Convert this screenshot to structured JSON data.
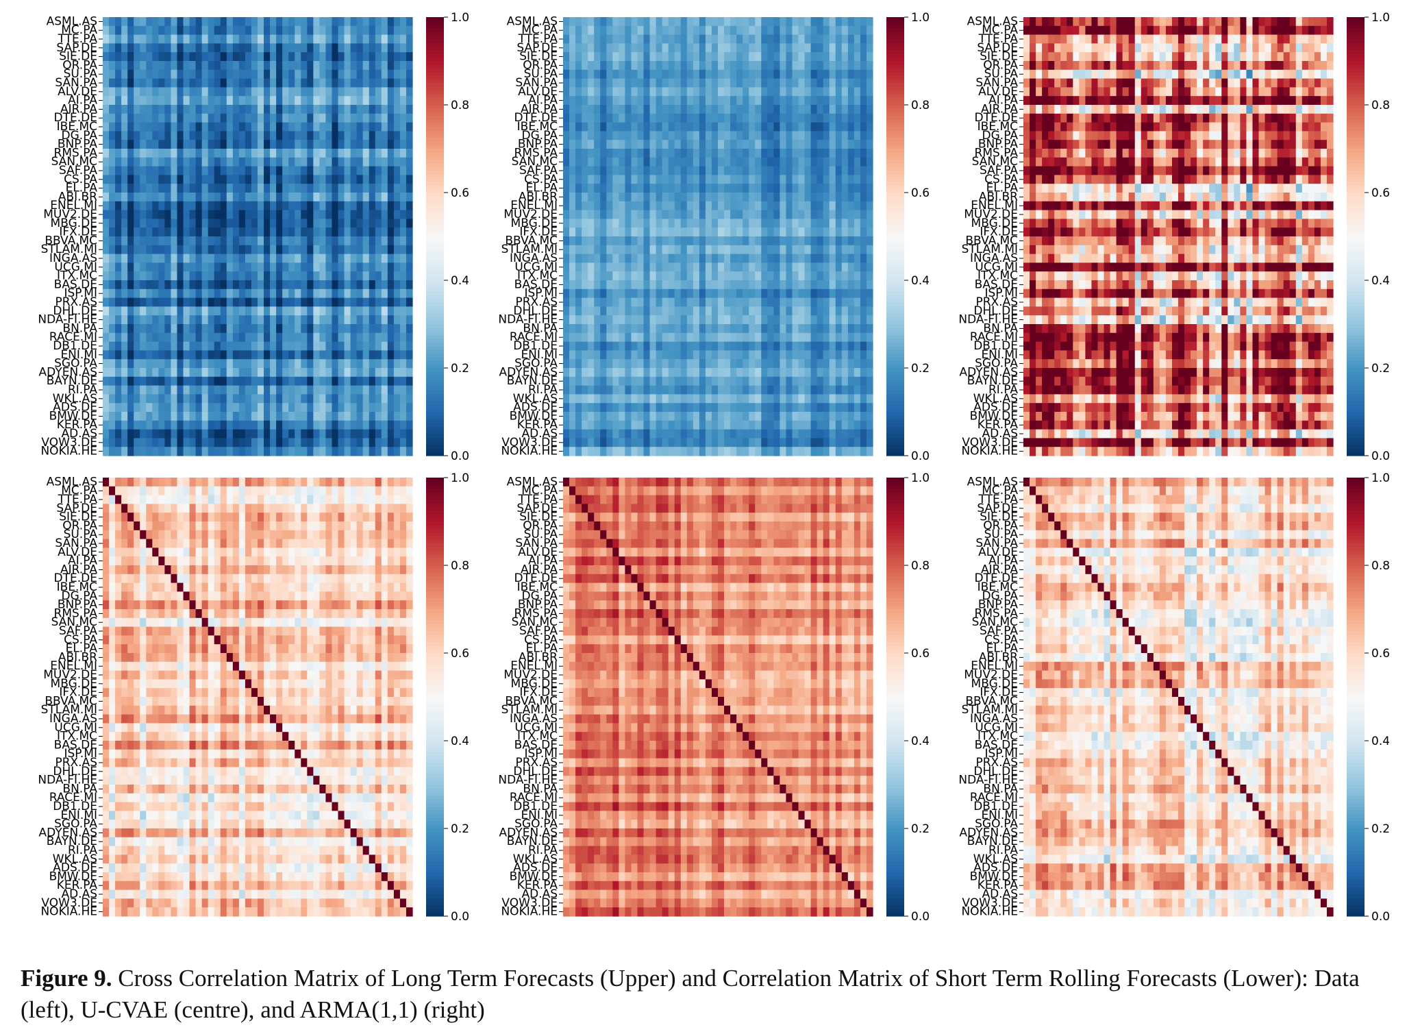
{
  "figure": {
    "caption_label": "Figure 9.",
    "caption_text": " Cross Correlation Matrix of Long Term Forecasts (Upper) and Correlation Matrix of Short Term Rolling Forecasts (Lower): Data (left), U-CVAE (centre), and ARMA(1,1) (right)"
  },
  "colormap": {
    "name": "RdBu_r",
    "stops": [
      "#053061",
      "#2166ac",
      "#4393c3",
      "#92c5de",
      "#d1e5f0",
      "#f7f7f7",
      "#fddbc7",
      "#f4a582",
      "#d6604d",
      "#b2182b",
      "#67001f"
    ]
  },
  "chart_data": [
    {
      "type": "heatmap",
      "panel": "long-term-data",
      "row_labels": [
        "ASML.AS",
        "MC.PA",
        "TTE.PA",
        "SAP.DE",
        "SIE.DE",
        "OR.PA",
        "SU.PA",
        "SAN.PA",
        "ALV.DE",
        "AI.PA",
        "AIR.PA",
        "DTE.DE",
        "IBE.MC",
        "DG.PA",
        "BNP.PA",
        "RMS.PA",
        "SAN.MC",
        "SAF.PA",
        "CS.PA",
        "EL.PA",
        "ABI.BR",
        "ENEL.MI",
        "MUV2.DE",
        "MBG.DE",
        "IFX.DE",
        "BBVA.MC",
        "STLAM.MI",
        "INGA.AS",
        "UCG.MI",
        "ITX.MC",
        "BAS.DE",
        "ISP.MI",
        "PRX.AS",
        "DHL.DE",
        "NDA-FI.HE",
        "BN.PA",
        "RACE.MI",
        "DB1.DE",
        "ENI.MI",
        "SGO.PA",
        "ADYEN.AS",
        "BAYN.DE",
        "RI.PA",
        "WKL.AS",
        "ADS.DE",
        "BMW.DE",
        "KER.PA",
        "AD.AS",
        "VOW3.DE",
        "NOKIA.HE"
      ],
      "colorbar_ticks": [
        "0.0",
        "0.2",
        "0.4",
        "0.6",
        "0.8",
        "1.0"
      ],
      "vmin": 0.0,
      "vmax": 1.0,
      "value_summary": {
        "mean": 0.15,
        "spread": 0.12,
        "diagonal": null
      }
    },
    {
      "type": "heatmap",
      "panel": "long-term-u-cvae",
      "row_labels": [
        "ASML.AS",
        "MC.PA",
        "TTE.PA",
        "SAP.DE",
        "SIE.DE",
        "OR.PA",
        "SU.PA",
        "SAN.PA",
        "ALV.DE",
        "AI.PA",
        "AIR.PA",
        "DTE.DE",
        "IBE.MC",
        "DG.PA",
        "BNP.PA",
        "RMS.PA",
        "SAN.MC",
        "SAF.PA",
        "CS.PA",
        "EL.PA",
        "ABI.BR",
        "ENEL.MI",
        "MUV2.DE",
        "MBG.DE",
        "IFX.DE",
        "BBVA.MC",
        "STLAM.MI",
        "INGA.AS",
        "UCG.MI",
        "ITX.MC",
        "BAS.DE",
        "ISP.MI",
        "PRX.AS",
        "DHL.DE",
        "NDA-FI.HE",
        "BN.PA",
        "RACE.MI",
        "DB1.DE",
        "ENI.MI",
        "SGO.PA",
        "ADYEN.AS",
        "BAYN.DE",
        "RI.PA",
        "WKL.AS",
        "ADS.DE",
        "BMW.DE",
        "KER.PA",
        "AD.AS",
        "VOW3.DE",
        "NOKIA.HE"
      ],
      "colorbar_ticks": [
        "0.0",
        "0.2",
        "0.4",
        "0.6",
        "0.8",
        "1.0"
      ],
      "vmin": 0.0,
      "vmax": 1.0,
      "value_summary": {
        "mean": 0.2,
        "spread": 0.08,
        "diagonal": null
      }
    },
    {
      "type": "heatmap",
      "panel": "long-term-arma",
      "row_labels": [
        "ASML.AS",
        "MC.PA",
        "TTE.PA",
        "SAP.DE",
        "SIE.DE",
        "OR.PA",
        "SU.PA",
        "SAN.PA",
        "ALV.DE",
        "AI.PA",
        "AIR.PA",
        "DTE.DE",
        "IBE.MC",
        "DG.PA",
        "BNP.PA",
        "RMS.PA",
        "SAN.MC",
        "SAF.PA",
        "CS.PA",
        "EL.PA",
        "ABI.BR",
        "ENEL.MI",
        "MUV2.DE",
        "MBG.DE",
        "IFX.DE",
        "BBVA.MC",
        "STLAM.MI",
        "INGA.AS",
        "UCG.MI",
        "ITX.MC",
        "BAS.DE",
        "ISP.MI",
        "PRX.AS",
        "DHL.DE",
        "NDA-FI.HE",
        "BN.PA",
        "RACE.MI",
        "DB1.DE",
        "ENI.MI",
        "SGO.PA",
        "ADYEN.AS",
        "BAYN.DE",
        "RI.PA",
        "WKL.AS",
        "ADS.DE",
        "BMW.DE",
        "KER.PA",
        "AD.AS",
        "VOW3.DE",
        "NOKIA.HE"
      ],
      "colorbar_ticks": [
        "0.0",
        "0.2",
        "0.4",
        "0.6",
        "0.8",
        "1.0"
      ],
      "vmin": 0.0,
      "vmax": 1.0,
      "value_summary": {
        "mean": 0.75,
        "spread": 0.3,
        "diagonal": null
      }
    },
    {
      "type": "heatmap",
      "panel": "short-term-data",
      "row_labels": [
        "ASML.AS",
        "MC.PA",
        "TTE.PA",
        "SAP.DE",
        "SIE.DE",
        "OR.PA",
        "SU.PA",
        "SAN.PA",
        "ALV.DE",
        "AI.PA",
        "AIR.PA",
        "DTE.DE",
        "IBE.MC",
        "DG.PA",
        "BNP.PA",
        "RMS.PA",
        "SAN.MC",
        "SAF.PA",
        "CS.PA",
        "EL.PA",
        "ABI.BR",
        "ENEL.MI",
        "MUV2.DE",
        "MBG.DE",
        "IFX.DE",
        "BBVA.MC",
        "STLAM.MI",
        "INGA.AS",
        "UCG.MI",
        "ITX.MC",
        "BAS.DE",
        "ISP.MI",
        "PRX.AS",
        "DHL.DE",
        "NDA-FI.HE",
        "BN.PA",
        "RACE.MI",
        "DB1.DE",
        "ENI.MI",
        "SGO.PA",
        "ADYEN.AS",
        "BAYN.DE",
        "RI.PA",
        "WKL.AS",
        "ADS.DE",
        "BMW.DE",
        "KER.PA",
        "AD.AS",
        "VOW3.DE",
        "NOKIA.HE"
      ],
      "colorbar_ticks": [
        "0.0",
        "0.2",
        "0.4",
        "0.6",
        "0.8",
        "1.0"
      ],
      "vmin": 0.0,
      "vmax": 1.0,
      "value_summary": {
        "mean": 0.6,
        "spread": 0.14,
        "diagonal": 1.0
      }
    },
    {
      "type": "heatmap",
      "panel": "short-term-u-cvae",
      "row_labels": [
        "ASML.AS",
        "MC.PA",
        "TTE.PA",
        "SAP.DE",
        "SIE.DE",
        "OR.PA",
        "SU.PA",
        "SAN.PA",
        "ALV.DE",
        "AI.PA",
        "AIR.PA",
        "DTE.DE",
        "IBE.MC",
        "DG.PA",
        "BNP.PA",
        "RMS.PA",
        "SAN.MC",
        "SAF.PA",
        "CS.PA",
        "EL.PA",
        "ABI.BR",
        "ENEL.MI",
        "MUV2.DE",
        "MBG.DE",
        "IFX.DE",
        "BBVA.MC",
        "STLAM.MI",
        "INGA.AS",
        "UCG.MI",
        "ITX.MC",
        "BAS.DE",
        "ISP.MI",
        "PRX.AS",
        "DHL.DE",
        "NDA-FI.HE",
        "BN.PA",
        "RACE.MI",
        "DB1.DE",
        "ENI.MI",
        "SGO.PA",
        "ADYEN.AS",
        "BAYN.DE",
        "RI.PA",
        "WKL.AS",
        "ADS.DE",
        "BMW.DE",
        "KER.PA",
        "AD.AS",
        "VOW3.DE",
        "NOKIA.HE"
      ],
      "colorbar_ticks": [
        "0.0",
        "0.2",
        "0.4",
        "0.6",
        "0.8",
        "1.0"
      ],
      "vmin": 0.0,
      "vmax": 1.0,
      "value_summary": {
        "mean": 0.74,
        "spread": 0.1,
        "diagonal": 1.0
      }
    },
    {
      "type": "heatmap",
      "panel": "short-term-arma",
      "row_labels": [
        "ASML.AS",
        "MC.PA",
        "TTE.PA",
        "SAP.DE",
        "SIE.DE",
        "OR.PA",
        "SU.PA",
        "SAN.PA",
        "ALV.DE",
        "AI.PA",
        "AIR.PA",
        "DTE.DE",
        "IBE.MC",
        "DG.PA",
        "BNP.PA",
        "RMS.PA",
        "SAN.MC",
        "SAF.PA",
        "CS.PA",
        "EL.PA",
        "ABI.BR",
        "ENEL.MI",
        "MUV2.DE",
        "MBG.DE",
        "IFX.DE",
        "BBVA.MC",
        "STLAM.MI",
        "INGA.AS",
        "UCG.MI",
        "ITX.MC",
        "BAS.DE",
        "ISP.MI",
        "PRX.AS",
        "DHL.DE",
        "NDA-FI.HE",
        "BN.PA",
        "RACE.MI",
        "DB1.DE",
        "ENI.MI",
        "SGO.PA",
        "ADYEN.AS",
        "BAYN.DE",
        "RI.PA",
        "WKL.AS",
        "ADS.DE",
        "BMW.DE",
        "KER.PA",
        "AD.AS",
        "VOW3.DE",
        "NOKIA.HE"
      ],
      "colorbar_ticks": [
        "0.0",
        "0.2",
        "0.4",
        "0.6",
        "0.8",
        "1.0"
      ],
      "vmin": 0.0,
      "vmax": 1.0,
      "value_summary": {
        "mean": 0.58,
        "spread": 0.15,
        "diagonal": 1.0
      }
    }
  ]
}
